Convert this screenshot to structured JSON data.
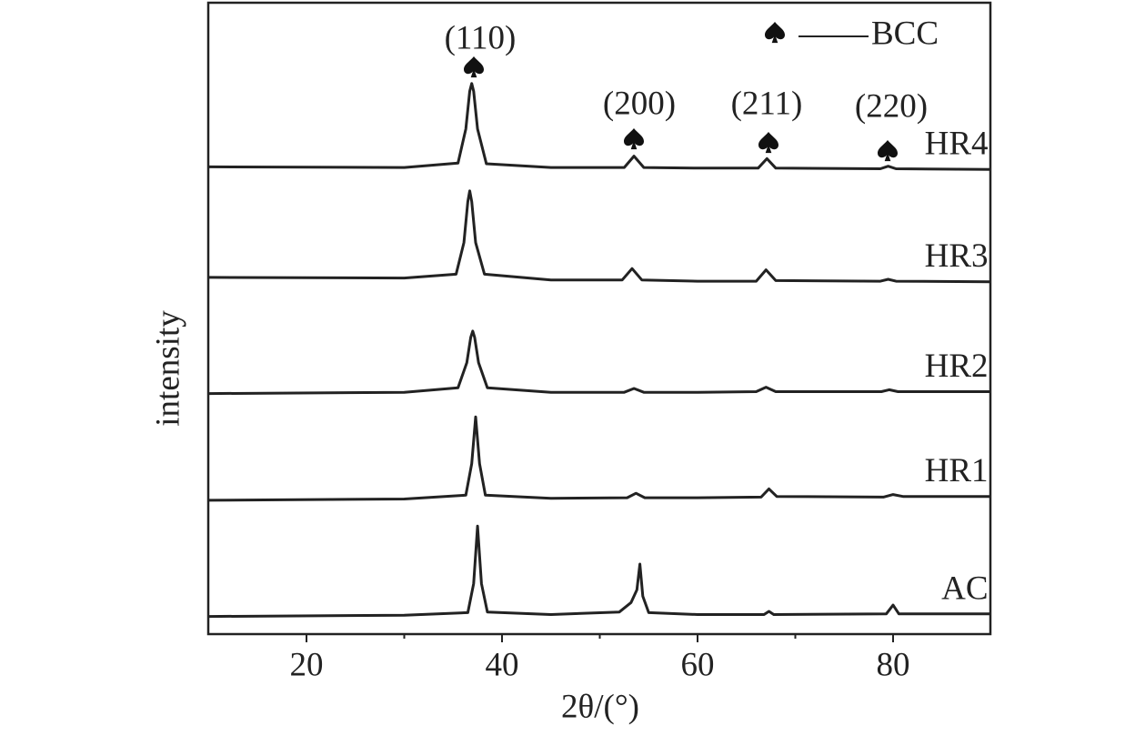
{
  "chart_data": {
    "type": "line",
    "xlabel": "2θ/(°)",
    "ylabel": "intensity",
    "xlim": [
      10,
      90
    ],
    "ylim": [
      0,
      100
    ],
    "xticks": [
      20,
      40,
      60,
      80
    ],
    "xminorticks": [
      30,
      50,
      70
    ],
    "legend": "BCC",
    "annotations": [
      "(110)",
      "(200)",
      "(211)",
      "(220)"
    ],
    "series": [
      {
        "name": "AC",
        "color": "#222222",
        "x": [
          10,
          30,
          36.5,
          37.1,
          37.5,
          37.9,
          38.5,
          45,
          52,
          53.2,
          53.8,
          54.1,
          54.4,
          55,
          60,
          66.8,
          67.3,
          67.8,
          79.3,
          80,
          80.6,
          90
        ],
        "values": [
          2.8,
          3.0,
          3.4,
          8,
          17.1,
          8,
          3.5,
          3.1,
          3.5,
          5,
          7,
          11.1,
          6,
          3.4,
          3.1,
          3.1,
          3.6,
          3.1,
          3.2,
          4.6,
          3.2,
          3.2
        ]
      },
      {
        "name": "HR1",
        "color": "#222222",
        "x": [
          10,
          30,
          36.3,
          36.9,
          37.3,
          37.7,
          38.3,
          45,
          52.8,
          53.7,
          54.6,
          60,
          66.5,
          67.3,
          68.1,
          79,
          80,
          81,
          90
        ],
        "values": [
          21.2,
          21.4,
          22,
          27,
          34.4,
          27,
          22,
          21.5,
          21.6,
          22.3,
          21.6,
          21.6,
          21.7,
          23,
          21.8,
          21.7,
          22.1,
          21.8,
          21.8
        ]
      },
      {
        "name": "HR2",
        "color": "#222222",
        "x": [
          10,
          30,
          35.5,
          36.4,
          36.8,
          37.0,
          37.2,
          37.6,
          38.5,
          45,
          52.5,
          53.5,
          54.5,
          60,
          66,
          67,
          68,
          78.8,
          79.6,
          80.5,
          90
        ],
        "values": [
          38.1,
          38.3,
          39,
          43,
          47,
          48,
          47,
          43,
          39,
          38.3,
          38.3,
          38.9,
          38.3,
          38.3,
          38.4,
          39.1,
          38.4,
          38.4,
          38.7,
          38.4,
          38.4
        ]
      },
      {
        "name": "HR3",
        "color": "#222222",
        "x": [
          10,
          30,
          35.3,
          36.1,
          36.5,
          36.7,
          36.9,
          37.3,
          38.2,
          45,
          52.3,
          53.3,
          54.3,
          60,
          66,
          67,
          68,
          78.7,
          79.5,
          80.3,
          90
        ],
        "values": [
          56.5,
          56.4,
          57,
          62,
          68.5,
          70.2,
          68.5,
          62,
          57,
          56.1,
          56.1,
          57.9,
          56.1,
          55.9,
          55.9,
          57.7,
          56,
          55.9,
          56.2,
          55.9,
          55.8
        ]
      },
      {
        "name": "HR4",
        "color": "#222222",
        "x": [
          10,
          30,
          35.5,
          36.3,
          36.7,
          36.9,
          37.1,
          37.5,
          38.4,
          45,
          52.5,
          53.5,
          54.5,
          60,
          66.2,
          67.1,
          68,
          78.7,
          79.5,
          80.3,
          90
        ],
        "values": [
          74,
          73.9,
          74.6,
          80,
          86,
          87.2,
          86,
          80,
          74.5,
          73.9,
          73.9,
          75.7,
          73.9,
          73.8,
          73.8,
          75.3,
          73.8,
          73.7,
          74.1,
          73.7,
          73.6
        ]
      }
    ]
  }
}
